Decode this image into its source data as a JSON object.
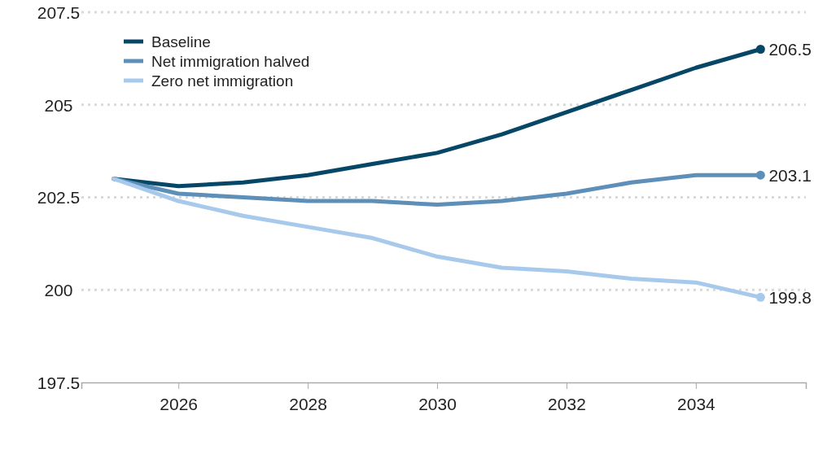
{
  "chart_data": {
    "type": "line",
    "x": [
      2025,
      2026,
      2027,
      2028,
      2029,
      2030,
      2031,
      2032,
      2033,
      2034,
      2035
    ],
    "series": [
      {
        "name": "Baseline",
        "color": "#064768",
        "values": [
          203.0,
          202.8,
          202.9,
          203.1,
          203.4,
          203.7,
          204.2,
          204.8,
          205.4,
          206.0,
          206.5
        ],
        "value_labels": [
          null,
          null,
          null,
          null,
          null,
          null,
          null,
          null,
          null,
          null,
          "206.5"
        ]
      },
      {
        "name": "Net immigration halved",
        "color": "#5e8fb8",
        "values": [
          203.0,
          202.6,
          202.5,
          202.4,
          202.4,
          202.3,
          202.4,
          202.6,
          202.9,
          203.1,
          203.1
        ],
        "value_labels": [
          null,
          null,
          null,
          null,
          null,
          null,
          null,
          null,
          null,
          null,
          "203.1"
        ]
      },
      {
        "name": "Zero net immigration",
        "color": "#a7caec",
        "values": [
          203.0,
          202.4,
          202.0,
          201.7,
          201.4,
          200.9,
          200.6,
          200.5,
          200.3,
          200.2,
          199.8
        ],
        "value_labels": [
          null,
          null,
          null,
          null,
          null,
          null,
          null,
          null,
          null,
          null,
          "199.8"
        ]
      }
    ],
    "xlim": [
      2024.5,
      2035.7
    ],
    "xticks": [
      2026,
      2028,
      2030,
      2032,
      2034
    ],
    "ylim": [
      197.5,
      207.5
    ],
    "yticks": [
      197.5,
      200,
      202.5,
      205,
      207.5
    ],
    "grid": "y",
    "legend": "top left",
    "marker": "none",
    "line_style": "solid"
  }
}
